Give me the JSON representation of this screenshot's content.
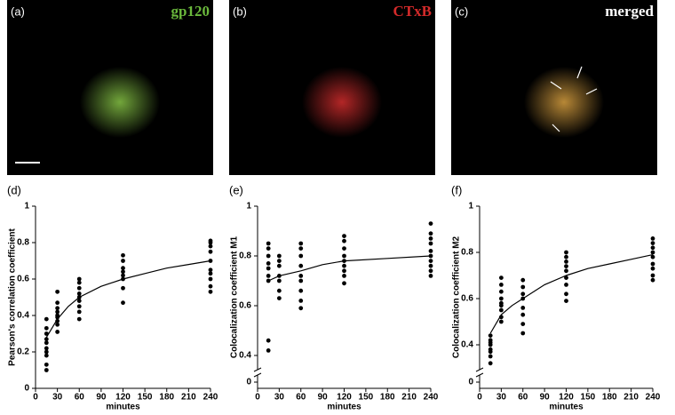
{
  "images": [
    {
      "label": "(a)",
      "title": "gp120",
      "color": "#6ab83c"
    },
    {
      "label": "(b)",
      "title": "CTxB",
      "color": "#d42a2a"
    },
    {
      "label": "(c)",
      "title": "merged",
      "color": "#ffffff"
    }
  ],
  "chart_data": [
    {
      "type": "scatter",
      "label": "(d)",
      "ylabel": "Pearson's correlation coefficient",
      "xlabel": "minutes",
      "xlim": [
        0,
        240
      ],
      "xticks": [
        0,
        30,
        60,
        90,
        120,
        150,
        180,
        210,
        240
      ],
      "ylim": [
        0,
        1
      ],
      "yticks": [
        0,
        0.2,
        0.4,
        0.6,
        0.8,
        1
      ],
      "points": {
        "x": [
          15,
          15,
          15,
          15,
          15,
          15,
          15,
          15,
          15,
          15,
          30,
          30,
          30,
          30,
          30,
          30,
          30,
          30,
          30,
          60,
          60,
          60,
          60,
          60,
          60,
          60,
          60,
          60,
          120,
          120,
          120,
          120,
          120,
          120,
          120,
          120,
          240,
          240,
          240,
          240,
          240,
          240,
          240,
          240,
          240,
          240
        ],
        "values": [
          0.1,
          0.13,
          0.18,
          0.2,
          0.22,
          0.25,
          0.27,
          0.3,
          0.33,
          0.38,
          0.31,
          0.35,
          0.37,
          0.39,
          0.4,
          0.42,
          0.44,
          0.47,
          0.53,
          0.38,
          0.42,
          0.45,
          0.48,
          0.5,
          0.52,
          0.55,
          0.58,
          0.6,
          0.47,
          0.55,
          0.6,
          0.62,
          0.64,
          0.66,
          0.7,
          0.73,
          0.53,
          0.56,
          0.6,
          0.63,
          0.65,
          0.7,
          0.75,
          0.78,
          0.8,
          0.81
        ]
      },
      "fit": {
        "x": [
          15,
          30,
          45,
          60,
          90,
          120,
          150,
          180,
          210,
          240
        ],
        "values": [
          0.28,
          0.38,
          0.45,
          0.5,
          0.56,
          0.6,
          0.63,
          0.66,
          0.68,
          0.7
        ]
      }
    },
    {
      "type": "scatter",
      "label": "(e)",
      "ylabel": "Colocalization coefficient M1",
      "xlabel": "minutes",
      "xlim": [
        0,
        240
      ],
      "xticks": [
        0,
        30,
        60,
        90,
        120,
        150,
        180,
        210,
        240
      ],
      "ylim": [
        0,
        1
      ],
      "yticks": [
        0,
        0.4,
        0.6,
        0.8,
        1
      ],
      "y_break": [
        0.05,
        0.35
      ],
      "points": {
        "x": [
          15,
          15,
          15,
          15,
          15,
          15,
          15,
          15,
          15,
          30,
          30,
          30,
          30,
          30,
          30,
          30,
          60,
          60,
          60,
          60,
          60,
          60,
          60,
          60,
          60,
          120,
          120,
          120,
          120,
          120,
          120,
          120,
          120,
          120,
          240,
          240,
          240,
          240,
          240,
          240,
          240,
          240,
          240,
          240
        ],
        "values": [
          0.42,
          0.46,
          0.7,
          0.72,
          0.75,
          0.77,
          0.8,
          0.83,
          0.85,
          0.63,
          0.66,
          0.7,
          0.72,
          0.76,
          0.78,
          0.8,
          0.59,
          0.62,
          0.66,
          0.7,
          0.72,
          0.76,
          0.8,
          0.83,
          0.85,
          0.69,
          0.72,
          0.74,
          0.76,
          0.78,
          0.8,
          0.83,
          0.86,
          0.88,
          0.72,
          0.74,
          0.76,
          0.78,
          0.8,
          0.82,
          0.85,
          0.87,
          0.89,
          0.93
        ]
      },
      "fit": {
        "x": [
          15,
          30,
          60,
          90,
          120,
          180,
          240
        ],
        "values": [
          0.7,
          0.72,
          0.74,
          0.765,
          0.78,
          0.79,
          0.8
        ]
      }
    },
    {
      "type": "scatter",
      "label": "(f)",
      "ylabel": "Colocalization coefficient M2",
      "xlabel": "minutes",
      "xlim": [
        0,
        240
      ],
      "xticks": [
        0,
        30,
        60,
        90,
        120,
        150,
        180,
        210,
        240
      ],
      "ylim": [
        0,
        1
      ],
      "yticks": [
        0,
        0.4,
        0.6,
        0.8,
        1
      ],
      "y_break": [
        0.05,
        0.3
      ],
      "points": {
        "x": [
          15,
          15,
          15,
          15,
          15,
          15,
          15,
          15,
          30,
          30,
          30,
          30,
          30,
          30,
          30,
          30,
          30,
          60,
          60,
          60,
          60,
          60,
          60,
          60,
          60,
          120,
          120,
          120,
          120,
          120,
          120,
          120,
          120,
          120,
          240,
          240,
          240,
          240,
          240,
          240,
          240,
          240,
          240
        ],
        "values": [
          0.32,
          0.35,
          0.37,
          0.38,
          0.4,
          0.41,
          0.42,
          0.44,
          0.5,
          0.52,
          0.55,
          0.57,
          0.58,
          0.6,
          0.63,
          0.66,
          0.69,
          0.45,
          0.49,
          0.53,
          0.56,
          0.6,
          0.62,
          0.65,
          0.68,
          0.59,
          0.62,
          0.66,
          0.69,
          0.72,
          0.74,
          0.76,
          0.78,
          0.8,
          0.68,
          0.7,
          0.73,
          0.75,
          0.78,
          0.8,
          0.82,
          0.84,
          0.86
        ]
      },
      "fit": {
        "x": [
          15,
          30,
          45,
          60,
          90,
          120,
          150,
          180,
          210,
          240
        ],
        "values": [
          0.45,
          0.53,
          0.57,
          0.6,
          0.66,
          0.7,
          0.73,
          0.75,
          0.77,
          0.79
        ]
      }
    }
  ]
}
